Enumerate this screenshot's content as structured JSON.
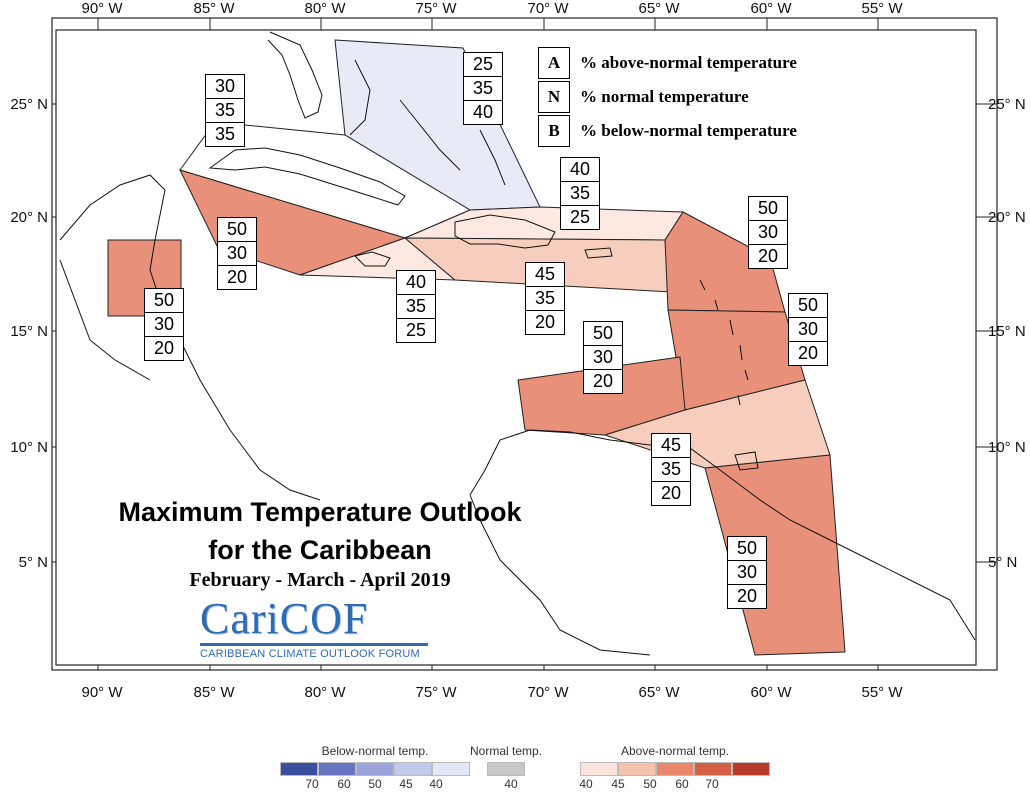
{
  "map": {
    "lon_labels": [
      "90° W",
      "85° W",
      "80° W",
      "75° W",
      "70° W",
      "65° W",
      "60° W",
      "55° W"
    ],
    "lat_labels": [
      "25° N",
      "20° N",
      "15° N",
      "10° N",
      "5° N"
    ]
  },
  "key": {
    "rows": [
      {
        "letter": "A",
        "text": "% above-normal temperature"
      },
      {
        "letter": "N",
        "text": "% normal temperature"
      },
      {
        "letter": "B",
        "text": "% below-normal temperature"
      }
    ]
  },
  "regions": [
    {
      "id": "bahamas",
      "category": "below-normal",
      "A": "25",
      "N": "35",
      "B": "40"
    },
    {
      "id": "cuba",
      "category": "normal",
      "A": "30",
      "N": "35",
      "B": "35"
    },
    {
      "id": "western-caribbean",
      "category": "above-normal-50",
      "A": "50",
      "N": "30",
      "B": "20"
    },
    {
      "id": "belize",
      "category": "above-normal-50",
      "A": "50",
      "N": "30",
      "B": "20"
    },
    {
      "id": "jamaica",
      "category": "above-normal-40",
      "A": "40",
      "N": "35",
      "B": "25"
    },
    {
      "id": "turks-caicos",
      "category": "above-normal-40",
      "A": "40",
      "N": "35",
      "B": "25"
    },
    {
      "id": "hispaniola-puerto-rico",
      "category": "above-normal-45",
      "A": "45",
      "N": "35",
      "B": "20"
    },
    {
      "id": "leeward-islands",
      "category": "above-normal-50",
      "A": "50",
      "N": "30",
      "B": "20"
    },
    {
      "id": "windward-islands",
      "category": "above-normal-50",
      "A": "50",
      "N": "30",
      "B": "20"
    },
    {
      "id": "abc-islands",
      "category": "above-normal-50",
      "A": "50",
      "N": "30",
      "B": "20"
    },
    {
      "id": "trinidad-tobago",
      "category": "above-normal-45",
      "A": "45",
      "N": "35",
      "B": "20"
    },
    {
      "id": "guianas",
      "category": "above-normal-50",
      "A": "50",
      "N": "30",
      "B": "20"
    }
  ],
  "title": {
    "line1": "Maximum Temperature Outlook",
    "line2": "for the Caribbean",
    "season": "February - March - April 2019"
  },
  "logo": {
    "main": "CariCOF",
    "sub": "CARIBBEAN CLIMATE OUTLOOK FORUM"
  },
  "legend": {
    "below": {
      "title": "Below-normal temp.",
      "ticks": [
        "70",
        "60",
        "50",
        "45",
        "40"
      ],
      "colors": [
        "#3b4fa0",
        "#6676c2",
        "#9aa4d8",
        "#c3c9ea",
        "#e3e6f6"
      ]
    },
    "normal": {
      "title": "Normal temp.",
      "ticks": [
        "40"
      ],
      "colors": [
        "#c8c8c8"
      ]
    },
    "above": {
      "title": "Above-normal temp.",
      "ticks": [
        "40",
        "45",
        "50",
        "60",
        "70"
      ],
      "colors": [
        "#fbe4dc",
        "#f5c2ae",
        "#e8876a",
        "#d35f44",
        "#b83a28"
      ]
    }
  },
  "colors": {
    "below_normal_40": "#e8ebf7",
    "normal": "#ffffff",
    "above_40": "#fde9e1",
    "above_45": "#f7cdbd",
    "above_50": "#e8907a"
  }
}
